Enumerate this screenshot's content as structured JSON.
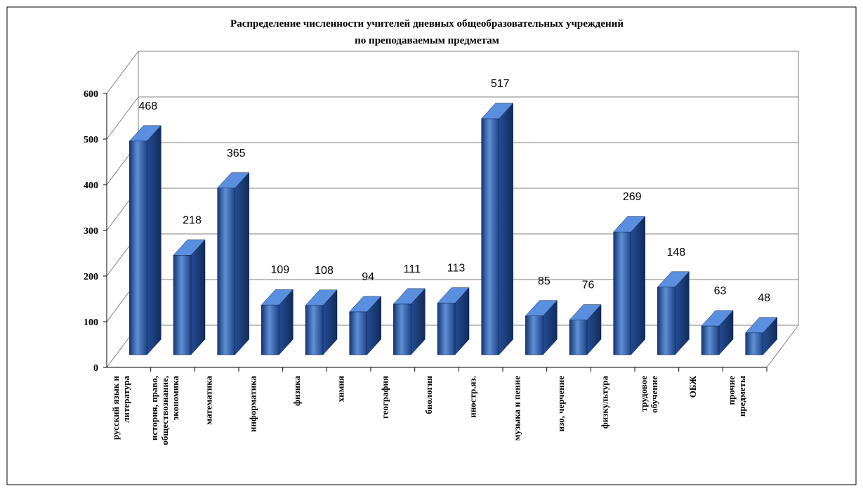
{
  "chart_data": {
    "type": "bar3d",
    "title": [
      "Распределение численности учителей дневных общеобразовательных учреждений",
      "по преподаваемым предметам"
    ],
    "categories": [
      "русский язык и\nлитература",
      "история, право,\nобществознание,\nэкономика",
      "математика",
      "информатика",
      "физика",
      "химия",
      "география",
      "биология",
      "иностр.яз.",
      "музыка и пение",
      "изо, черчение",
      "физкультура",
      "трудовое\nобучение",
      "ОБЖ",
      "прочие\nпредметы"
    ],
    "values": [
      468,
      218,
      365,
      109,
      108,
      94,
      111,
      113,
      517,
      85,
      76,
      269,
      148,
      63,
      48
    ],
    "color": "#2f5fa8",
    "ylim": [
      0,
      600
    ],
    "yticks": [
      0,
      100,
      200,
      300,
      400,
      500,
      600
    ],
    "grid": true
  }
}
